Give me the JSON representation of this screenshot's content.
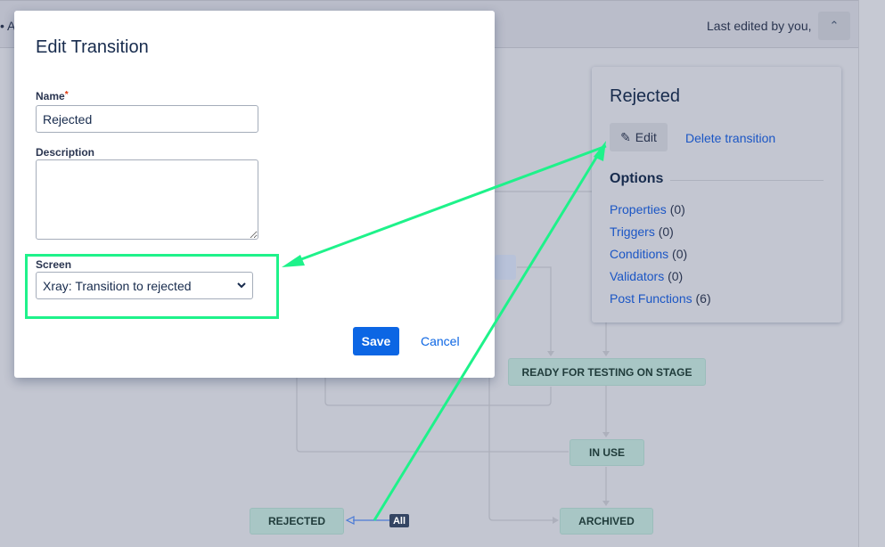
{
  "header": {
    "breadcrumb_fragment": "• A",
    "last_edited": "Last edited by you,",
    "collapse_icon": "double-chevron-up"
  },
  "diagram": {
    "nodes": [
      "READY FOR TESTING ON STAGE",
      "IN USE",
      "REJECTED",
      "ARCHIVED"
    ],
    "all_badge": "All",
    "node_color": "#a8c6c5"
  },
  "panel": {
    "title": "Rejected",
    "edit_label": "Edit",
    "delete_label": "Delete transition",
    "options_heading": "Options",
    "options": [
      {
        "label": "Properties",
        "count": "(0)"
      },
      {
        "label": "Triggers",
        "count": "(0)"
      },
      {
        "label": "Conditions",
        "count": "(0)"
      },
      {
        "label": "Validators",
        "count": "(0)"
      },
      {
        "label": "Post Functions",
        "count": "(6)"
      }
    ]
  },
  "dialog": {
    "title": "Edit Transition",
    "name_label": "Name",
    "required_mark": "*",
    "name_value": "Rejected",
    "description_label": "Description",
    "description_value": "",
    "screen_label": "Screen",
    "screen_value": "Xray: Transition to rejected",
    "save_label": "Save",
    "cancel_label": "Cancel",
    "primary_color": "#0c66e4"
  },
  "annotation": {
    "highlight_color": "#1ef28a"
  }
}
